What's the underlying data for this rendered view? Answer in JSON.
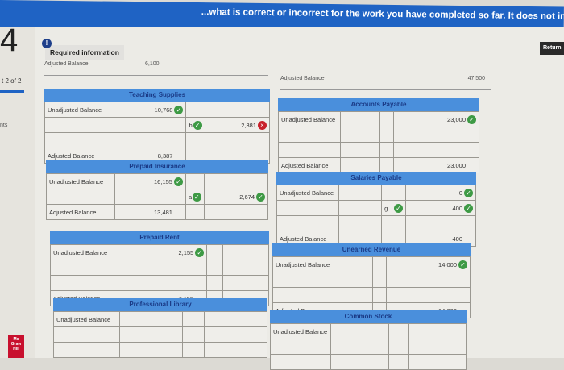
{
  "banner": {
    "text": "...what is correct or incorrect for the work you have completed so far. It does not indicate completion."
  },
  "sidebar": {
    "question_number": "4",
    "part": "t 2 of 2",
    "points": "nts"
  },
  "header": {
    "required_info": "Required information",
    "return_label": "Return"
  },
  "partial_rows": {
    "left": {
      "label": "Adjusted Balance",
      "value": "6,100"
    },
    "right": {
      "label": "Adjusted Balance",
      "value": "47,500"
    }
  },
  "accounts": [
    {
      "title": "Teaching Supplies",
      "rows": [
        [
          {
            "t": "Unadjusted Balance"
          },
          {
            "t": "10,768",
            "s": "correct"
          },
          {
            "t": ""
          },
          {
            "t": ""
          }
        ],
        [
          {
            "t": ""
          },
          {
            "t": ""
          },
          {
            "t": "b",
            "s": "correct"
          },
          {
            "t": "2,381",
            "s": "incorrect"
          }
        ],
        [
          {
            "t": ""
          },
          {
            "t": ""
          },
          {
            "t": ""
          },
          {
            "t": ""
          }
        ],
        [
          {
            "t": "Adjusted Balance"
          },
          {
            "t": "8,387"
          },
          {
            "t": ""
          },
          {
            "t": ""
          }
        ]
      ]
    },
    {
      "title": "Prepaid Insurance",
      "rows": [
        [
          {
            "t": "Unadjusted Balance"
          },
          {
            "t": "16,155",
            "s": "correct"
          },
          {
            "t": ""
          },
          {
            "t": ""
          }
        ],
        [
          {
            "t": ""
          },
          {
            "t": ""
          },
          {
            "t": "a",
            "s": "correct"
          },
          {
            "t": "2,674",
            "s": "correct"
          }
        ],
        [
          {
            "t": "Adjusted Balance"
          },
          {
            "t": "13,481"
          },
          {
            "t": ""
          },
          {
            "t": ""
          }
        ]
      ]
    },
    {
      "title": "Prepaid Rent",
      "rows": [
        [
          {
            "t": "Unadjusted Balance"
          },
          {
            "t": "2,155",
            "s": "correct"
          },
          {
            "t": ""
          },
          {
            "t": ""
          }
        ],
        [
          {
            "t": ""
          },
          {
            "t": ""
          },
          {
            "t": ""
          },
          {
            "t": ""
          }
        ],
        [
          {
            "t": ""
          },
          {
            "t": ""
          },
          {
            "t": ""
          },
          {
            "t": ""
          }
        ],
        [
          {
            "t": "Adjusted Balance"
          },
          {
            "t": "2,155"
          },
          {
            "t": ""
          },
          {
            "t": ""
          }
        ]
      ]
    },
    {
      "title": "Professional Library",
      "rows": [
        [
          {
            "t": "Unadjusted Balance"
          },
          {
            "t": ""
          },
          {
            "t": ""
          },
          {
            "t": ""
          }
        ],
        [
          {
            "t": ""
          },
          {
            "t": ""
          },
          {
            "t": ""
          },
          {
            "t": ""
          }
        ],
        [
          {
            "t": ""
          },
          {
            "t": ""
          },
          {
            "t": ""
          },
          {
            "t": ""
          }
        ]
      ]
    },
    {
      "title": "Accounts Payable",
      "rows": [
        [
          {
            "t": "Unadjusted Balance"
          },
          {
            "t": ""
          },
          {
            "t": ""
          },
          {
            "t": "23,000",
            "s": "correct"
          }
        ],
        [
          {
            "t": ""
          },
          {
            "t": ""
          },
          {
            "t": ""
          },
          {
            "t": ""
          }
        ],
        [
          {
            "t": ""
          },
          {
            "t": ""
          },
          {
            "t": ""
          },
          {
            "t": ""
          }
        ],
        [
          {
            "t": "Adjusted Balance"
          },
          {
            "t": ""
          },
          {
            "t": ""
          },
          {
            "t": "23,000"
          }
        ]
      ]
    },
    {
      "title": "Salaries Payable",
      "rows": [
        [
          {
            "t": "Unadjusted Balance"
          },
          {
            "t": ""
          },
          {
            "t": ""
          },
          {
            "t": "0",
            "s": "correct"
          }
        ],
        [
          {
            "t": ""
          },
          {
            "t": ""
          },
          {
            "t": "g",
            "s": "correct"
          },
          {
            "t": "400",
            "s": "correct"
          }
        ],
        [
          {
            "t": ""
          },
          {
            "t": ""
          },
          {
            "t": ""
          },
          {
            "t": ""
          }
        ],
        [
          {
            "t": "Adjusted Balance"
          },
          {
            "t": ""
          },
          {
            "t": ""
          },
          {
            "t": "400"
          }
        ]
      ]
    },
    {
      "title": "Unearned Revenue",
      "rows": [
        [
          {
            "t": "Unadjusted Balance"
          },
          {
            "t": ""
          },
          {
            "t": ""
          },
          {
            "t": "14,000",
            "s": "correct"
          }
        ],
        [
          {
            "t": ""
          },
          {
            "t": ""
          },
          {
            "t": ""
          },
          {
            "t": ""
          }
        ],
        [
          {
            "t": ""
          },
          {
            "t": ""
          },
          {
            "t": ""
          },
          {
            "t": ""
          }
        ],
        [
          {
            "t": "Adjusted Balance"
          },
          {
            "t": ""
          },
          {
            "t": ""
          },
          {
            "t": "14,000"
          }
        ]
      ]
    },
    {
      "title": "Common Stock",
      "rows": [
        [
          {
            "t": "Unadjusted Balance"
          },
          {
            "t": ""
          },
          {
            "t": ""
          },
          {
            "t": ""
          }
        ],
        [
          {
            "t": ""
          },
          {
            "t": ""
          },
          {
            "t": ""
          },
          {
            "t": ""
          }
        ],
        [
          {
            "t": ""
          },
          {
            "t": ""
          },
          {
            "t": ""
          },
          {
            "t": ""
          }
        ]
      ]
    }
  ],
  "colors": {
    "banner": "#1f63c4",
    "header": "#4a8fdc",
    "correct": "#3e9a45",
    "incorrect": "#c8202a"
  }
}
